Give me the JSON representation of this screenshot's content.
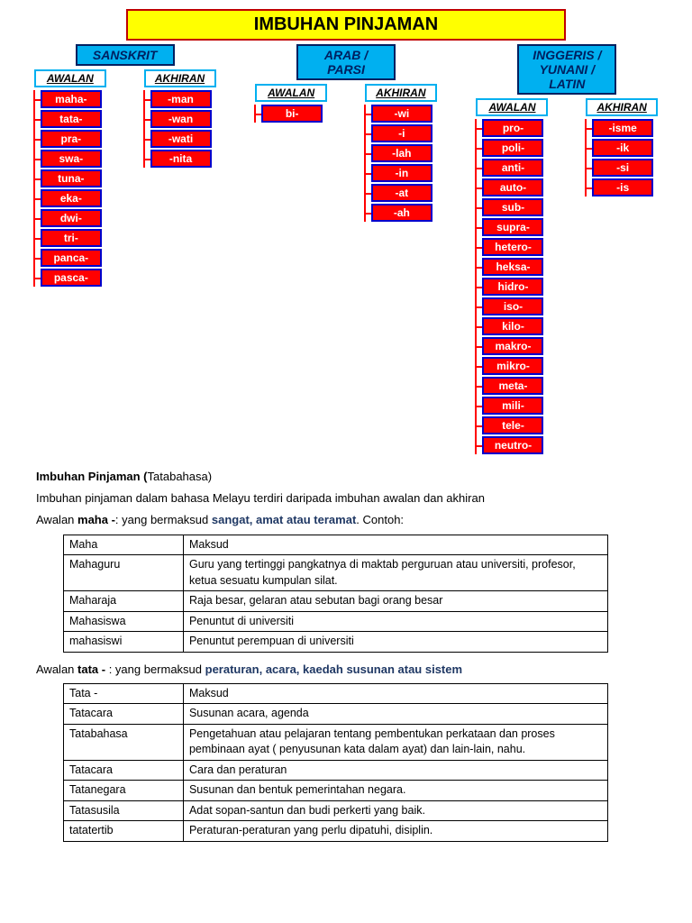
{
  "title": "IMBUHAN PINJAMAN",
  "colors": {
    "title_bg": "#ffff00",
    "title_border": "#c00000",
    "lang_bg": "#00b0f0",
    "lang_border": "#002060",
    "sub_border": "#00b0f0",
    "item_bg": "#ff0000",
    "item_border": "#0000cc",
    "item_text": "#ffffff",
    "connector": "#ff0000"
  },
  "languages": [
    {
      "name": "SANSKRIT",
      "groups": [
        {
          "label": "AWALAN",
          "items": [
            "maha-",
            "tata-",
            "pra-",
            "swa-",
            "tuna-",
            "eka-",
            "dwi-",
            "tri-",
            "panca-",
            "pasca-"
          ]
        },
        {
          "label": "AKHIRAN",
          "items": [
            "-man",
            "-wan",
            "-wati",
            "-nita"
          ]
        }
      ]
    },
    {
      "name": "ARAB / PARSI",
      "groups": [
        {
          "label": "AWALAN",
          "items": [
            "bi-"
          ]
        },
        {
          "label": "AKHIRAN",
          "items": [
            "-wi",
            "-i",
            "-lah",
            "-in",
            "-at",
            "-ah"
          ]
        }
      ]
    },
    {
      "name": "INGGERIS / YUNANI / LATIN",
      "groups": [
        {
          "label": "AWALAN",
          "items": [
            "pro-",
            "poli-",
            "anti-",
            "auto-",
            "sub-",
            "supra-",
            "hetero-",
            "heksa-",
            "hidro-",
            "iso-",
            "kilo-",
            "makro-",
            "mikro-",
            "meta-",
            "mili-",
            "tele-",
            "neutro-"
          ]
        },
        {
          "label": "AKHIRAN",
          "items": [
            "-isme",
            "-ik",
            "-si",
            "-is"
          ]
        }
      ]
    }
  ],
  "text": {
    "heading": "Imbuhan Pinjaman (",
    "heading2": "Tatabahasa)",
    "intro": "Imbuhan pinjaman dalam bahasa Melayu terdiri daripada imbuhan awalan dan akhiran",
    "maha_label": "Awalan  ",
    "maha_bold": "maha -",
    "maha_rest": ": yang bermaksud ",
    "maha_blue": "sangat, amat atau teramat",
    "maha_end": ". Contoh:",
    "tata_label": "Awalan ",
    "tata_bold": "tata - ",
    "tata_rest": " :  yang bermaksud ",
    "tata_blue": "peraturan, acara, kaedah susunan atau sistem"
  },
  "table_maha": {
    "rows": [
      [
        "Maha",
        "Maksud"
      ],
      [
        "Mahaguru",
        "Guru yang tertinggi pangkatnya di maktab perguruan atau universiti, profesor, ketua sesuatu kumpulan silat."
      ],
      [
        "Maharaja",
        "Raja besar, gelaran atau sebutan bagi orang besar"
      ],
      [
        "Mahasiswa",
        "Penuntut di universiti"
      ],
      [
        "mahasiswi",
        "Penuntut perempuan di universiti"
      ]
    ]
  },
  "table_tata": {
    "rows": [
      [
        "Tata -",
        "Maksud"
      ],
      [
        "Tatacara",
        "Susunan acara, agenda"
      ],
      [
        "Tatabahasa",
        "Pengetahuan atau pelajaran tentang pembentukan perkataan dan proses pembinaan ayat ( penyusunan kata dalam ayat) dan lain-lain, nahu."
      ],
      [
        "Tatacara",
        "Cara dan peraturan"
      ],
      [
        "Tatanegara",
        "Susunan dan bentuk pemerintahan negara."
      ],
      [
        "Tatasusila",
        "Adat sopan-santun dan budi perkerti yang baik."
      ],
      [
        "tatatertib",
        "Peraturan-peraturan yang perlu dipatuhi, disiplin."
      ]
    ]
  }
}
